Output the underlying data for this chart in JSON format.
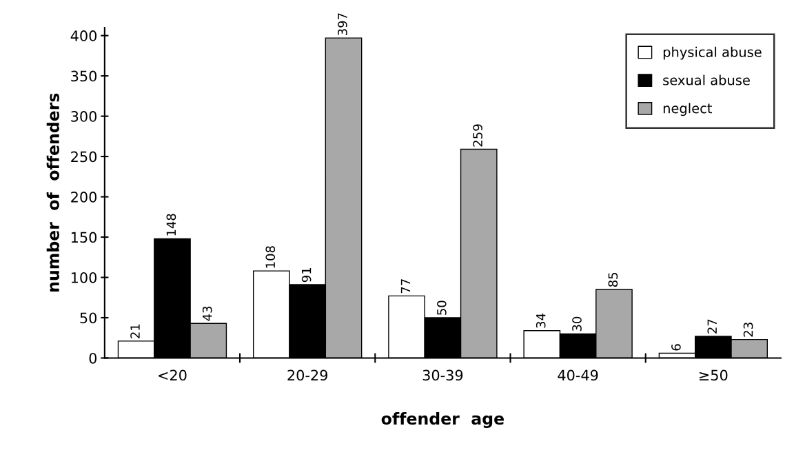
{
  "chart_data": {
    "type": "bar",
    "xlabel": "offender  age",
    "ylabel": "number  of  offenders",
    "categories": [
      "<20",
      "20-29",
      "30-39",
      "40-49",
      "≥50"
    ],
    "series": [
      {
        "name": "physical abuse",
        "color": "#ffffff",
        "values": [
          21,
          108,
          77,
          34,
          6
        ]
      },
      {
        "name": "sexual abuse",
        "color": "#000000",
        "values": [
          148,
          91,
          50,
          30,
          27
        ]
      },
      {
        "name": "neglect",
        "color": "#a8a8a8",
        "values": [
          43,
          397,
          259,
          85,
          23
        ]
      }
    ],
    "ylim": [
      0,
      410
    ],
    "yticks": [
      0,
      50,
      100,
      150,
      200,
      250,
      300,
      350,
      400
    ],
    "data_labels": true,
    "grid": false,
    "legend": "top right"
  }
}
